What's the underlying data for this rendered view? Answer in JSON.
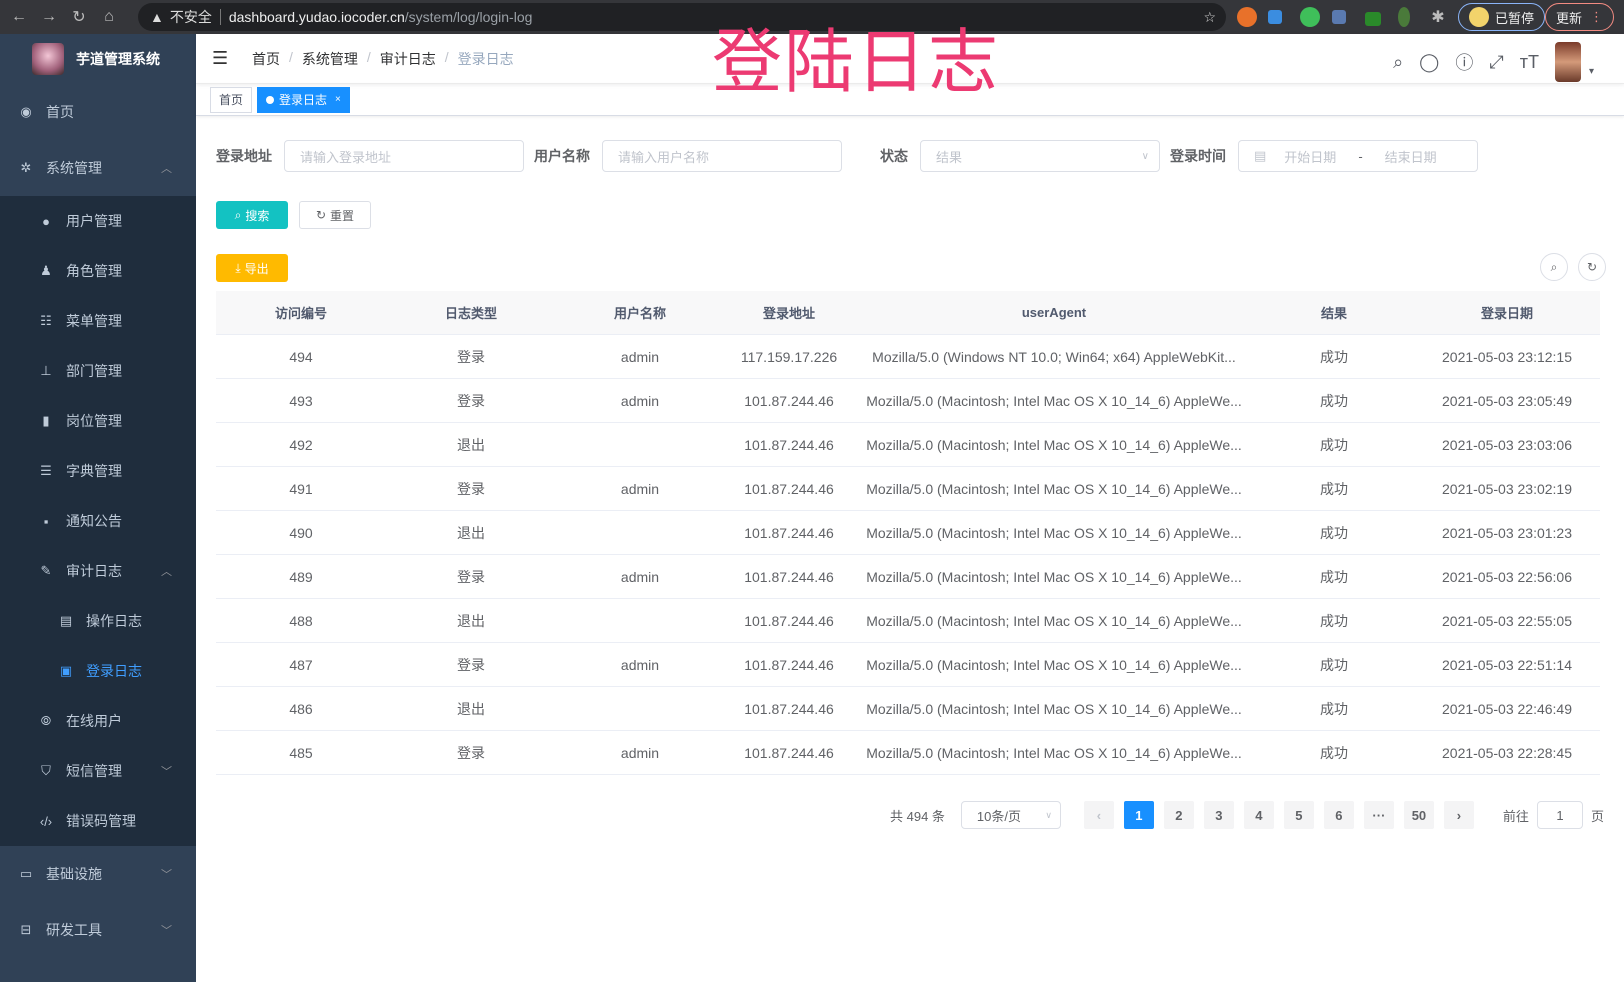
{
  "browser": {
    "insecure": "不安全",
    "host": "dashboard.yudao.iocoder.cn",
    "path": "/system/log/login-log",
    "paused": "已暂停",
    "update": "更新"
  },
  "overlay_title": "登陆日志",
  "sidebar": {
    "title": "芋道管理系统",
    "items": [
      {
        "label": "首页",
        "icon": "dashboard-icon"
      },
      {
        "label": "系统管理",
        "icon": "gear-icon",
        "expanded": true,
        "children": [
          {
            "label": "用户管理",
            "icon": "user-icon"
          },
          {
            "label": "角色管理",
            "icon": "role-icon"
          },
          {
            "label": "菜单管理",
            "icon": "menu-icon"
          },
          {
            "label": "部门管理",
            "icon": "tree-icon"
          },
          {
            "label": "岗位管理",
            "icon": "post-icon"
          },
          {
            "label": "字典管理",
            "icon": "dict-icon"
          },
          {
            "label": "通知公告",
            "icon": "message-icon"
          },
          {
            "label": "审计日志",
            "icon": "log-icon",
            "expanded": true,
            "children": [
              {
                "label": "操作日志",
                "icon": "form-icon"
              },
              {
                "label": "登录日志",
                "icon": "logininfor-icon",
                "active": true
              }
            ]
          },
          {
            "label": "在线用户",
            "icon": "online-icon"
          },
          {
            "label": "短信管理",
            "icon": "shield-icon"
          },
          {
            "label": "错误码管理",
            "icon": "code-icon"
          }
        ]
      },
      {
        "label": "基础设施",
        "icon": "monitor-icon"
      },
      {
        "label": "研发工具",
        "icon": "tool-icon"
      }
    ]
  },
  "breadcrumb": [
    "首页",
    "系统管理",
    "审计日志",
    "登录日志"
  ],
  "tags": [
    {
      "label": "首页"
    },
    {
      "label": "登录日志",
      "active": true
    }
  ],
  "filters": {
    "address_label": "登录地址",
    "address_placeholder": "请输入登录地址",
    "username_label": "用户名称",
    "username_placeholder": "请输入用户名称",
    "status_label": "状态",
    "status_placeholder": "结果",
    "time_label": "登录时间",
    "start_placeholder": "开始日期",
    "end_placeholder": "结束日期",
    "range_sep": "-"
  },
  "buttons": {
    "search": "搜索",
    "reset": "重置",
    "export": "导出"
  },
  "colors": {
    "sidebar": "#304156",
    "submenu": "#1f2d3d",
    "primary": "#1890ff",
    "search_btn": "#13c2c2",
    "export_btn": "#ffba00",
    "overlay": "#ec3a72"
  },
  "table": {
    "columns": [
      "访问编号",
      "日志类型",
      "用户名称",
      "登录地址",
      "userAgent",
      "结果",
      "登录日期"
    ],
    "rows": [
      [
        "494",
        "登录",
        "admin",
        "117.159.17.226",
        "Mozilla/5.0 (Windows NT 10.0; Win64; x64) AppleWebKit...",
        "成功",
        "2021-05-03 23:12:15"
      ],
      [
        "493",
        "登录",
        "admin",
        "101.87.244.46",
        "Mozilla/5.0 (Macintosh; Intel Mac OS X 10_14_6) AppleWe...",
        "成功",
        "2021-05-03 23:05:49"
      ],
      [
        "492",
        "退出",
        "",
        "101.87.244.46",
        "Mozilla/5.0 (Macintosh; Intel Mac OS X 10_14_6) AppleWe...",
        "成功",
        "2021-05-03 23:03:06"
      ],
      [
        "491",
        "登录",
        "admin",
        "101.87.244.46",
        "Mozilla/5.0 (Macintosh; Intel Mac OS X 10_14_6) AppleWe...",
        "成功",
        "2021-05-03 23:02:19"
      ],
      [
        "490",
        "退出",
        "",
        "101.87.244.46",
        "Mozilla/5.0 (Macintosh; Intel Mac OS X 10_14_6) AppleWe...",
        "成功",
        "2021-05-03 23:01:23"
      ],
      [
        "489",
        "登录",
        "admin",
        "101.87.244.46",
        "Mozilla/5.0 (Macintosh; Intel Mac OS X 10_14_6) AppleWe...",
        "成功",
        "2021-05-03 22:56:06"
      ],
      [
        "488",
        "退出",
        "",
        "101.87.244.46",
        "Mozilla/5.0 (Macintosh; Intel Mac OS X 10_14_6) AppleWe...",
        "成功",
        "2021-05-03 22:55:05"
      ],
      [
        "487",
        "登录",
        "admin",
        "101.87.244.46",
        "Mozilla/5.0 (Macintosh; Intel Mac OS X 10_14_6) AppleWe...",
        "成功",
        "2021-05-03 22:51:14"
      ],
      [
        "486",
        "退出",
        "",
        "101.87.244.46",
        "Mozilla/5.0 (Macintosh; Intel Mac OS X 10_14_6) AppleWe...",
        "成功",
        "2021-05-03 22:46:49"
      ],
      [
        "485",
        "登录",
        "admin",
        "101.87.244.46",
        "Mozilla/5.0 (Macintosh; Intel Mac OS X 10_14_6) AppleWe...",
        "成功",
        "2021-05-03 22:28:45"
      ]
    ]
  },
  "pagination": {
    "total": "共 494 条",
    "page_size": "10条/页",
    "pages": [
      "1",
      "2",
      "3",
      "4",
      "5",
      "6",
      "···",
      "50"
    ],
    "current": "1",
    "goto_label": "前往",
    "goto_value": "1",
    "goto_suffix": "页",
    "prev": "‹",
    "next": "›"
  }
}
